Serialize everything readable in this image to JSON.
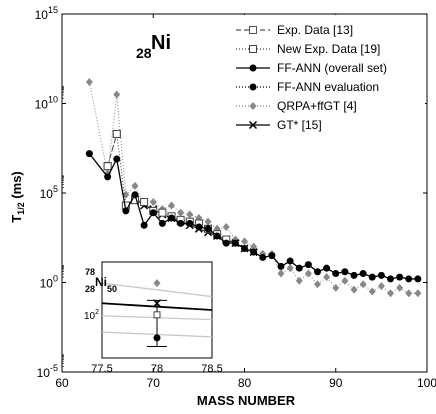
{
  "chart_data": {
    "type": "scatter",
    "xlabel": "MASS NUMBER",
    "ylabel_main": "T",
    "ylabel_sub": "1/2",
    "ylabel_unit": " (ms)",
    "yscale": "log",
    "xlim": [
      60,
      100
    ],
    "ylim_exp": [
      -5,
      15
    ],
    "x_ticks": [
      60,
      70,
      80,
      90,
      100
    ],
    "y_ticks_exp": [
      -5,
      0,
      5,
      10,
      15
    ],
    "element_label": {
      "mass_sub": "28",
      "symbol": "Ni"
    },
    "legend": [
      {
        "label": "Exp. Data [13]",
        "style": "dash-square"
      },
      {
        "label": "New Exp. Data [19]",
        "style": "dot-square"
      },
      {
        "label": "FF-ANN (overall set)",
        "style": "solid-dot"
      },
      {
        "label": "FF-ANN evaluation",
        "style": "dot-dot"
      },
      {
        "label": "QRPA+ffGT [4]",
        "style": "dot-diamond"
      },
      {
        "label": "GT* [15]",
        "style": "solid-x"
      }
    ],
    "series": [
      {
        "name": "Exp. Data [13]",
        "x": [
          65,
          66
        ],
        "y_log10": [
          6.5,
          8.3
        ]
      },
      {
        "name": "New Exp. Data [19]",
        "x": [
          65,
          66,
          67,
          68,
          69,
          70,
          71,
          72,
          73,
          74,
          75,
          76,
          77,
          78
        ],
        "y_log10": [
          6.5,
          8.3,
          4.3,
          4.6,
          4.5,
          4.0,
          3.9,
          3.7,
          3.5,
          3.4,
          3.3,
          3.0,
          2.7,
          2.4
        ]
      },
      {
        "name": "FF-ANN (overall set)",
        "x": [
          63,
          65,
          66,
          67,
          68,
          69,
          70,
          71,
          72,
          73,
          74,
          75,
          76,
          77,
          78,
          79,
          80,
          81,
          82,
          83,
          84,
          85,
          86,
          87,
          88,
          89,
          90,
          91,
          92,
          93,
          94,
          95,
          96,
          97,
          98,
          99
        ],
        "y_log10": [
          7.2,
          5.9,
          6.9,
          4.0,
          4.9,
          3.2,
          3.9,
          3.3,
          3.6,
          3.3,
          3.3,
          3.1,
          3.0,
          2.6,
          2.2,
          2.2,
          1.9,
          1.7,
          1.4,
          1.5,
          0.9,
          1.2,
          0.8,
          1.0,
          0.6,
          0.8,
          0.5,
          0.6,
          0.4,
          0.5,
          0.3,
          0.4,
          0.2,
          0.3,
          0.2,
          0.2
        ]
      },
      {
        "name": "QRPA+ffGT [4]",
        "x": [
          63,
          65,
          66,
          67,
          68,
          69,
          70,
          71,
          72,
          73,
          74,
          75,
          76,
          77,
          78,
          79,
          80,
          81,
          82,
          83,
          84,
          85,
          86,
          87,
          88,
          89,
          90,
          91,
          92,
          93,
          94,
          95,
          96,
          97,
          98,
          99
        ],
        "y_log10": [
          11.2,
          6.1,
          10.5,
          4.9,
          5.4,
          4.4,
          4.5,
          4.1,
          4.3,
          3.9,
          3.8,
          3.6,
          3.4,
          3.0,
          3.1,
          2.4,
          2.3,
          2.0,
          1.6,
          1.6,
          0.5,
          0.8,
          0.1,
          0.5,
          -0.1,
          0.3,
          -0.3,
          0.1,
          -0.4,
          -0.1,
          -0.5,
          -0.2,
          -0.6,
          -0.3,
          -0.6,
          -0.6
        ]
      },
      {
        "name": "GT* [15]",
        "x": [
          67,
          68,
          69,
          70,
          71,
          72,
          73,
          74,
          75,
          76,
          77,
          78,
          79,
          80,
          81
        ],
        "y_log10": [
          4.3,
          4.7,
          4.3,
          4.1,
          3.8,
          3.6,
          3.4,
          3.2,
          3.0,
          2.8,
          2.6,
          2.4,
          2.2,
          1.9,
          1.7
        ]
      }
    ],
    "inset": {
      "label": {
        "mass_sup": "78",
        "z_sub": "28",
        "symbol": "Ni",
        "n_sub": "50"
      },
      "xlim": [
        77.5,
        78.5
      ],
      "x_ticks": [
        "77.5",
        "78",
        "78.5"
      ],
      "y_tick_label": "10",
      "y_tick_exp": "2",
      "lines": [
        {
          "y": [
            0.78,
            0.64
          ],
          "color": "#c8c8c8"
        },
        {
          "y": [
            0.57,
            0.5
          ],
          "color": "#000000"
        },
        {
          "y": [
            0.44,
            0.4
          ],
          "color": "#c8c8c8"
        },
        {
          "y": [
            0.27,
            0.22
          ],
          "color": "#c8c8c8"
        }
      ],
      "points": {
        "diamond_y": 0.78,
        "x_marker_y": 0.57,
        "square_y": 0.45,
        "dot_y": 0.21,
        "errorbar": [
          0.12,
          0.6
        ]
      }
    }
  }
}
